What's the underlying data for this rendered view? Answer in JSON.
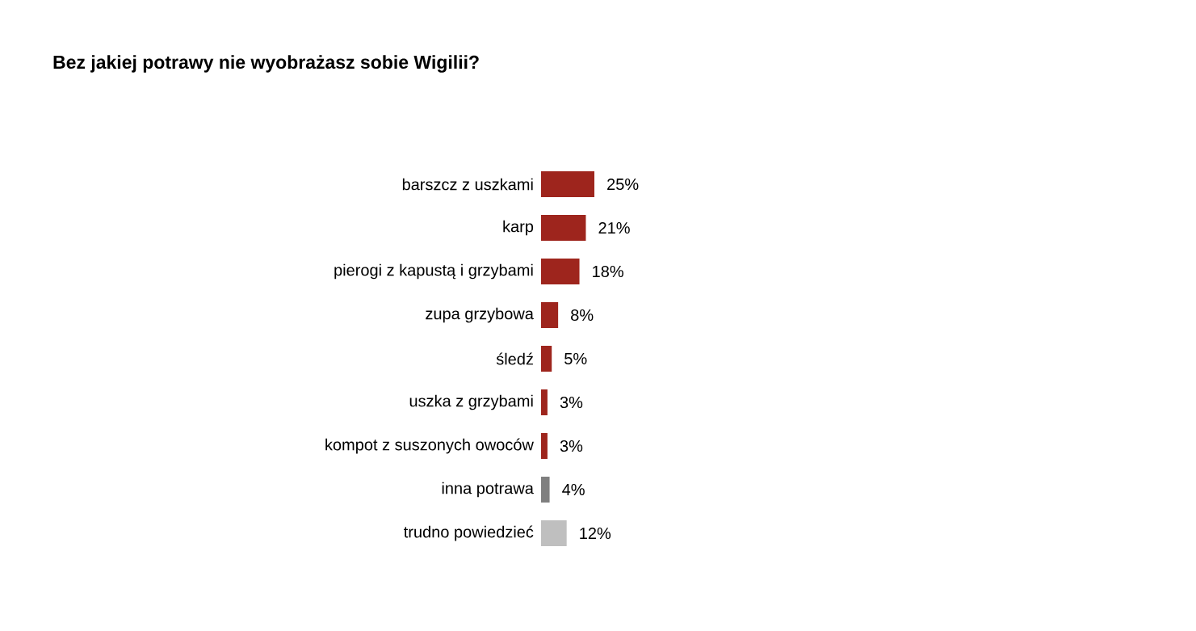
{
  "chart_data": {
    "type": "bar",
    "orientation": "horizontal",
    "title": "Bez jakiej potrawy nie wyobrażasz sobie Wigilii?",
    "categories": [
      "barszcz z uszkami",
      "karp",
      "pierogi z kapustą i grzybami",
      "zupa grzybowa",
      "śledź",
      "uszka z grzybami",
      "kompot z suszonych owoców",
      "inna potrawa",
      "trudno powiedzieć"
    ],
    "values": [
      25,
      21,
      18,
      8,
      5,
      3,
      3,
      4,
      12
    ],
    "colors": [
      "#9e251d",
      "#9e251d",
      "#9e251d",
      "#9e251d",
      "#9e251d",
      "#9e251d",
      "#9e251d",
      "#7f7f7f",
      "#bfbfbf"
    ],
    "value_labels": [
      "25%",
      "21%",
      "18%",
      "8%",
      "5%",
      "3%",
      "3%",
      "4%",
      "12%"
    ]
  }
}
